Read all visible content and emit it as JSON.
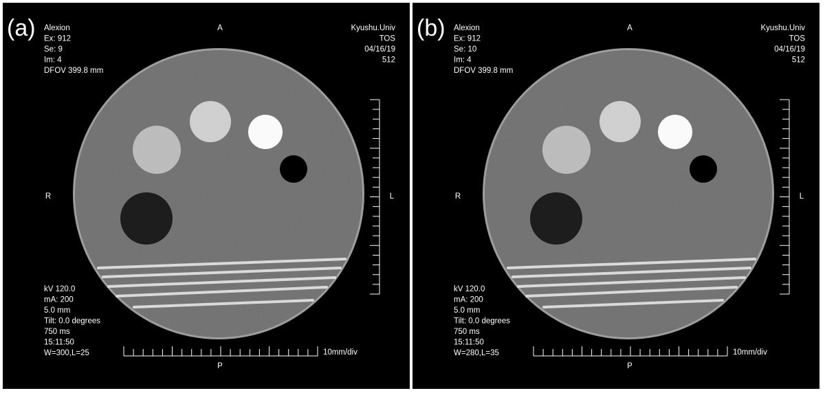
{
  "panels": [
    {
      "label": "(a)",
      "top_left": [
        "Alexion",
        "Ex: 912",
        "Se: 9",
        "Im: 4",
        "DFOV 399.8 mm"
      ],
      "top_right": [
        "Kyushu.Univ",
        "TOS",
        "04/16/19",
        "512"
      ],
      "bottom_left": [
        "kV 120.0",
        "mA:  200",
        "5.0 mm",
        "Tilt: 0.0 degrees",
        "750 ms",
        "15:11:50",
        "W=300,L=25"
      ],
      "orientation": {
        "top": "A",
        "left": "R",
        "right": "L",
        "bottom": "P"
      },
      "scale_label": "10mm/div"
    },
    {
      "label": "(b)",
      "top_left": [
        "Alexion",
        "Ex: 912",
        "Se: 10",
        "Im: 4",
        "DFOV 399.8 mm"
      ],
      "top_right": [
        "Kyushu.Univ",
        "TOS",
        "04/16/19",
        "512"
      ],
      "bottom_left": [
        "kV 120.0",
        "mA:  200",
        "5.0 mm",
        "Tilt: 0.0 degrees",
        "750 ms",
        "15:11:50",
        "W=280,L=35"
      ],
      "orientation": {
        "top": "A",
        "left": "R",
        "right": "L",
        "bottom": "P"
      },
      "scale_label": "10mm/div"
    }
  ]
}
